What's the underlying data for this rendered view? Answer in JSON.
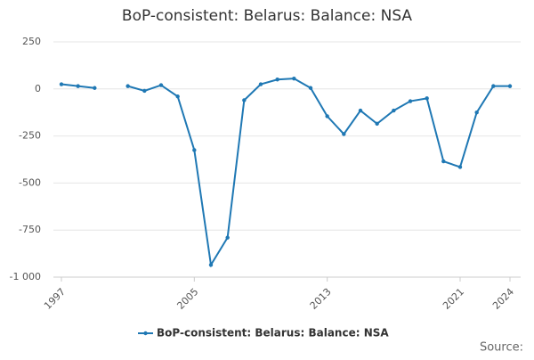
{
  "chart_data": {
    "type": "line",
    "title": "BoP-consistent: Belarus: Balance: NSA",
    "x": [
      1997,
      1998,
      1999,
      2000,
      2001,
      2002,
      2003,
      2004,
      2005,
      2006,
      2007,
      2008,
      2009,
      2010,
      2011,
      2012,
      2013,
      2014,
      2015,
      2016,
      2017,
      2018,
      2019,
      2020,
      2021,
      2022,
      2023,
      2024
    ],
    "series": [
      {
        "name": "BoP-consistent: Belarus: Balance: NSA",
        "color": "#1f78b4",
        "values": [
          25,
          15,
          5,
          null,
          15,
          -10,
          20,
          -40,
          -325,
          -935,
          -790,
          -60,
          25,
          50,
          55,
          5,
          -145,
          -240,
          -115,
          -185,
          -115,
          -65,
          -50,
          -385,
          -415,
          -125,
          15,
          15
        ]
      }
    ],
    "xlim": [
      1997,
      2024
    ],
    "xticks": [
      1997,
      2005,
      2013,
      2021,
      2024
    ],
    "ylim": [
      -1000,
      250
    ],
    "yticks": [
      250,
      0,
      -250,
      -500,
      -750,
      {
        "value": -1000,
        "label": "-1 000"
      }
    ],
    "grid": true,
    "legend": "bottom",
    "source": "Source:"
  }
}
